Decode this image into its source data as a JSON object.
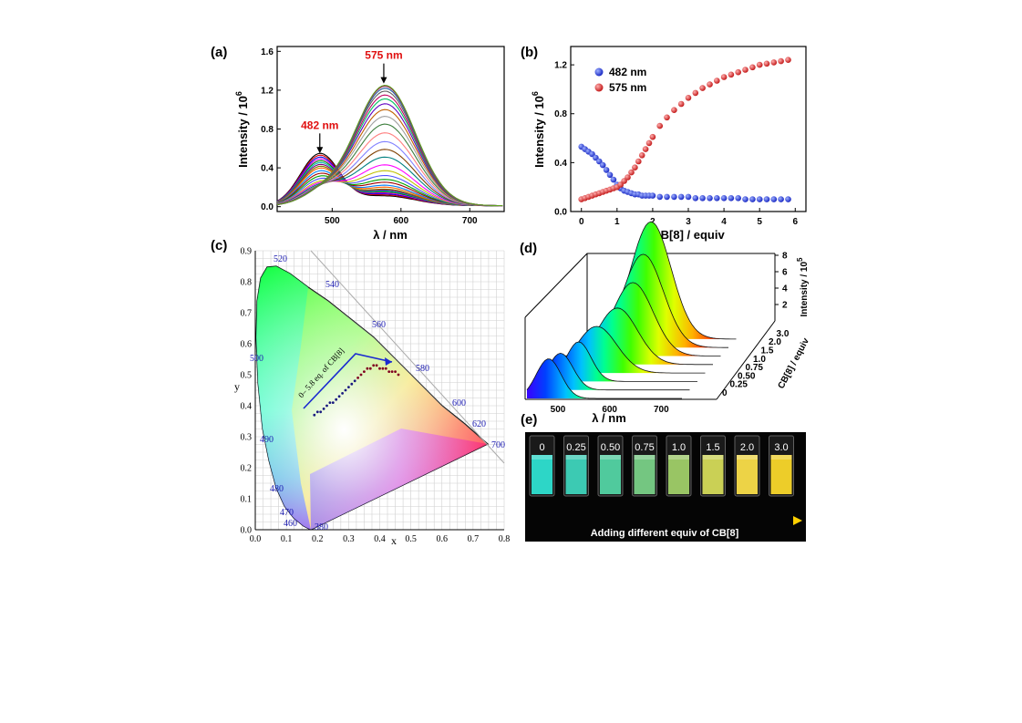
{
  "chart_data": [
    {
      "panel": "(a)",
      "type": "line",
      "xlabel": "λ / nm",
      "ylabel": "Intensity / 10",
      "ylabel_sup": "6",
      "xlim": [
        420,
        750
      ],
      "ylim": [
        -0.05,
        1.65
      ],
      "xticks": [
        500,
        600,
        700
      ],
      "yticks": [
        0.0,
        0.4,
        0.8,
        1.2,
        1.6
      ],
      "ytick_labels": [
        "0.0",
        "0.4",
        "0.8",
        "1.2",
        "1.6"
      ],
      "annotations": [
        {
          "text": "482 nm",
          "x": 482,
          "y": 0.52,
          "color": "#e01010"
        },
        {
          "text": "575 nm",
          "x": 575,
          "y": 1.24,
          "color": "#e01010"
        }
      ],
      "series_note": "29 emission spectra for increasing CB[8] equiv; peak at 482 nm decreases from 0.53 to 0.10 while peak at 575 nm increases from 0.10 to 1.24",
      "peak_blue": [
        0.53,
        0.51,
        0.49,
        0.47,
        0.45,
        0.43,
        0.41,
        0.39,
        0.37,
        0.34,
        0.31,
        0.28,
        0.25,
        0.22,
        0.2,
        0.18,
        0.16,
        0.15,
        0.14,
        0.13,
        0.13,
        0.12,
        0.12,
        0.11,
        0.11,
        0.11,
        0.1,
        0.1,
        0.1
      ],
      "peak_red": [
        0.1,
        0.11,
        0.12,
        0.13,
        0.14,
        0.15,
        0.16,
        0.17,
        0.19,
        0.21,
        0.24,
        0.27,
        0.31,
        0.36,
        0.42,
        0.5,
        0.58,
        0.66,
        0.75,
        0.84,
        0.92,
        0.99,
        1.05,
        1.1,
        1.14,
        1.18,
        1.21,
        1.23,
        1.24
      ]
    },
    {
      "panel": "(b)",
      "type": "scatter",
      "xlabel": "CB[8] / equiv",
      "ylabel": "Intensity / 10",
      "ylabel_sup": "6",
      "xlim": [
        -0.3,
        6.3
      ],
      "ylim": [
        0.0,
        1.35
      ],
      "xticks": [
        0,
        1,
        2,
        3,
        4,
        5,
        6
      ],
      "yticks": [
        0.0,
        0.4,
        0.8,
        1.2
      ],
      "ytick_labels": [
        "0.0",
        "0.4",
        "0.8",
        "1.2"
      ],
      "x": [
        0.0,
        0.1,
        0.2,
        0.3,
        0.4,
        0.5,
        0.6,
        0.7,
        0.8,
        0.9,
        1.0,
        1.1,
        1.2,
        1.3,
        1.4,
        1.5,
        1.6,
        1.7,
        1.8,
        1.9,
        2.0,
        2.2,
        2.4,
        2.6,
        2.8,
        3.0,
        3.2,
        3.4,
        3.6,
        3.8,
        4.0,
        4.2,
        4.4,
        4.6,
        4.8,
        5.0,
        5.2,
        5.4,
        5.6,
        5.8
      ],
      "series": [
        {
          "name": "482 nm",
          "color": "#2233dd",
          "values": [
            0.53,
            0.51,
            0.49,
            0.47,
            0.44,
            0.41,
            0.38,
            0.34,
            0.3,
            0.26,
            0.22,
            0.19,
            0.17,
            0.16,
            0.15,
            0.14,
            0.14,
            0.13,
            0.13,
            0.13,
            0.13,
            0.12,
            0.12,
            0.12,
            0.12,
            0.12,
            0.11,
            0.11,
            0.11,
            0.11,
            0.11,
            0.11,
            0.11,
            0.1,
            0.1,
            0.1,
            0.1,
            0.1,
            0.1,
            0.1
          ]
        },
        {
          "name": "575 nm",
          "color": "#e02222",
          "values": [
            0.1,
            0.11,
            0.12,
            0.13,
            0.14,
            0.15,
            0.16,
            0.17,
            0.18,
            0.19,
            0.2,
            0.22,
            0.25,
            0.28,
            0.32,
            0.36,
            0.41,
            0.46,
            0.51,
            0.56,
            0.61,
            0.7,
            0.77,
            0.83,
            0.88,
            0.93,
            0.97,
            1.01,
            1.04,
            1.07,
            1.1,
            1.12,
            1.14,
            1.16,
            1.18,
            1.2,
            1.21,
            1.22,
            1.23,
            1.24
          ]
        }
      ]
    },
    {
      "panel": "(c)",
      "type": "scatter",
      "xlabel": "x",
      "ylabel": "y",
      "xlim": [
        0.0,
        0.8
      ],
      "ylim": [
        0.0,
        0.9
      ],
      "xticks": [
        0.0,
        0.1,
        0.2,
        0.3,
        0.4,
        0.5,
        0.6,
        0.7,
        0.8
      ],
      "yticks": [
        0.0,
        0.1,
        0.2,
        0.3,
        0.4,
        0.5,
        0.6,
        0.7,
        0.8,
        0.9
      ],
      "xtick_labels": [
        "0.0",
        "0.1",
        "0.2",
        "0.3",
        "0.4",
        "0.5",
        "0.6",
        "0.7",
        "0.8"
      ],
      "ytick_labels": [
        "0.0",
        "0.1",
        "0.2",
        "0.3",
        "0.4",
        "0.5",
        "0.6",
        "0.7",
        "0.8",
        "0.9"
      ],
      "annotation": "0– 5.8 eq. of CB[8]",
      "wavelength_labels": [
        "380",
        "460",
        "470",
        "480",
        "490",
        "500",
        "520",
        "540",
        "560",
        "580",
        "600",
        "620",
        "700"
      ],
      "x": [
        0.19,
        0.2,
        0.21,
        0.22,
        0.23,
        0.24,
        0.25,
        0.26,
        0.27,
        0.28,
        0.29,
        0.3,
        0.31,
        0.32,
        0.33,
        0.34,
        0.35,
        0.36,
        0.37,
        0.38,
        0.39,
        0.4,
        0.41,
        0.42,
        0.43,
        0.44,
        0.45,
        0.46
      ],
      "y": [
        0.37,
        0.38,
        0.38,
        0.39,
        0.4,
        0.41,
        0.41,
        0.42,
        0.43,
        0.44,
        0.45,
        0.46,
        0.47,
        0.48,
        0.49,
        0.5,
        0.51,
        0.52,
        0.52,
        0.53,
        0.53,
        0.52,
        0.52,
        0.52,
        0.51,
        0.51,
        0.51,
        0.5
      ]
    },
    {
      "panel": "(d)",
      "type": "area",
      "xlabel": "λ / nm",
      "ylabel": "Intensity / 10",
      "ylabel_sup": "5",
      "zlabel": "CB[8] / equiv",
      "xticks": [
        500,
        600,
        700
      ],
      "yticks": [
        2,
        4,
        6,
        8
      ],
      "ztick_labels": [
        "0",
        "0.25",
        "0.50",
        "0.75",
        "1.0",
        "1.5",
        "2.0",
        "3.0"
      ],
      "series": [
        {
          "name": "0",
          "values_peak": [
            2.8
          ],
          "peak_nm": [
            482
          ]
        },
        {
          "name": "0.25",
          "values_peak": [
            2.6
          ],
          "peak_nm": [
            490
          ]
        },
        {
          "name": "0.50",
          "values_peak": [
            2.8
          ],
          "peak_nm": [
            510
          ]
        },
        {
          "name": "0.75",
          "values_peak": [
            3.3
          ],
          "peak_nm": [
            530
          ]
        },
        {
          "name": "1.0",
          "values_peak": [
            4.0
          ],
          "peak_nm": [
            555
          ]
        },
        {
          "name": "1.5",
          "values_peak": [
            5.2
          ],
          "peak_nm": [
            570
          ]
        },
        {
          "name": "2.0",
          "values_peak": [
            6.6
          ],
          "peak_nm": [
            575
          ]
        },
        {
          "name": "3.0",
          "values_peak": [
            8.3
          ],
          "peak_nm": [
            575
          ]
        }
      ]
    }
  ],
  "panel_e": {
    "label": "(e)",
    "vials": [
      "0",
      "0.25",
      "0.50",
      "0.75",
      "1.0",
      "1.5",
      "2.0",
      "3.0"
    ],
    "vial_colors": [
      "#2fe6d6",
      "#3fd9c0",
      "#55d9a8",
      "#7cd58a",
      "#a4d46a",
      "#d9e05a",
      "#ffe34a",
      "#ffdc2a"
    ],
    "arrow_text": "Adding different equiv of  CB[8]"
  },
  "panel_labels": {
    "a": "(a)",
    "b": "(b)",
    "c": "(c)",
    "d": "(d)"
  }
}
